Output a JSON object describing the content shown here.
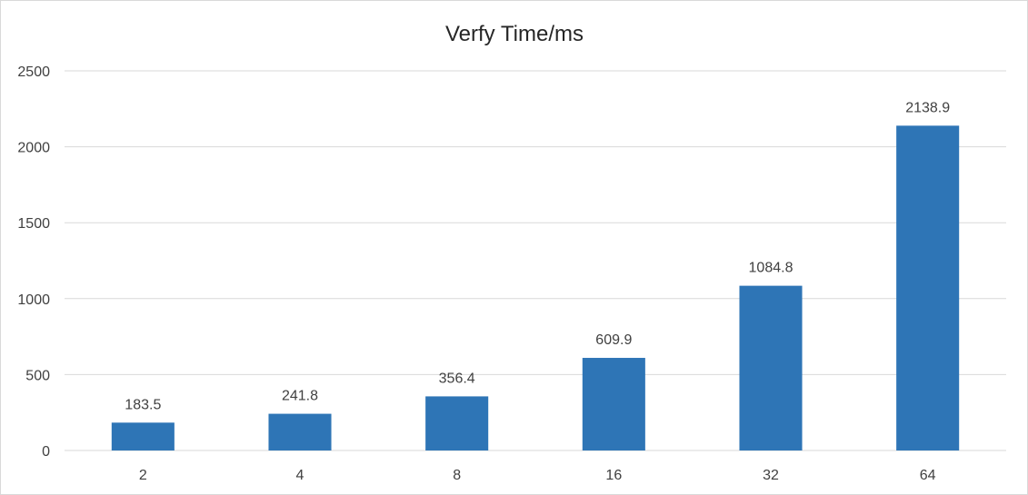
{
  "chart_data": {
    "type": "bar",
    "title": "Verfy Time/ms",
    "xlabel": "",
    "ylabel": "",
    "categories": [
      "2",
      "4",
      "8",
      "16",
      "32",
      "64"
    ],
    "values": [
      183.5,
      241.8,
      356.4,
      609.9,
      1084.8,
      2138.9
    ],
    "data_labels": [
      "183.5",
      "241.8",
      "356.4",
      "609.9",
      "1084.8",
      "2138.9"
    ],
    "ylim": [
      0,
      2500
    ],
    "yticks": [
      0,
      500,
      1000,
      1500,
      2000,
      2500
    ],
    "ytick_labels": [
      "0",
      "500",
      "1000",
      "1500",
      "2000",
      "2500"
    ],
    "grid": true,
    "legend": "none",
    "bar_color": "#2e75b6",
    "grid_color": "#d9d9d9"
  }
}
